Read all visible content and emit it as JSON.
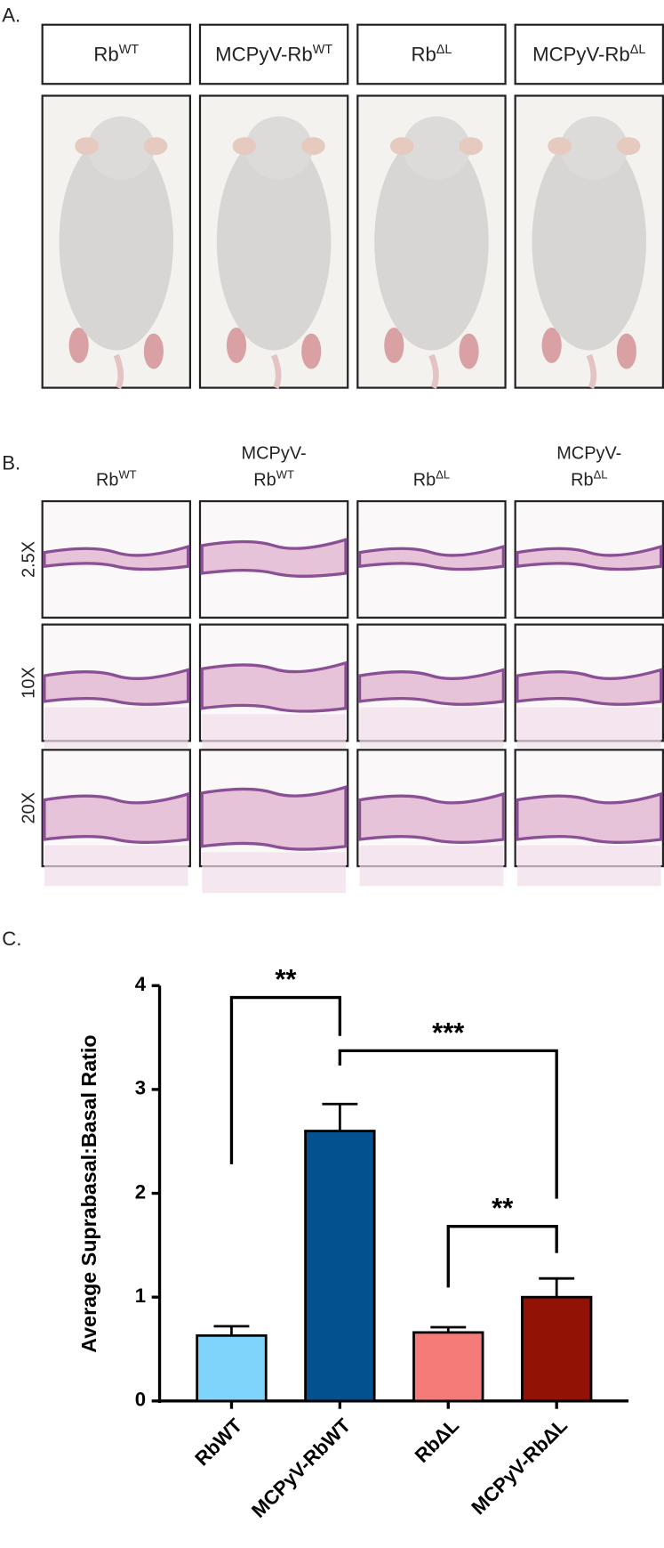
{
  "panel_a": {
    "label": "A.",
    "columns": [
      {
        "base": "Rb",
        "sup": "WT"
      },
      {
        "prefix": "MCPyV-",
        "base": "Rb",
        "sup": "WT"
      },
      {
        "base": "Rb",
        "sup": "ΔL"
      },
      {
        "prefix": "MCPyV-",
        "base": "Rb",
        "sup": "ΔL"
      }
    ]
  },
  "panel_b": {
    "label": "B.",
    "columns": [
      {
        "base": "Rb",
        "sup": "WT"
      },
      {
        "prefix": "MCPyV-",
        "base": "Rb",
        "sup": "WT"
      },
      {
        "base": "Rb",
        "sup": "ΔL"
      },
      {
        "prefix": "MCPyV-",
        "base": "Rb",
        "sup": "ΔL"
      }
    ],
    "rows": [
      "2.5X",
      "10X",
      "20X"
    ]
  },
  "panel_c": {
    "label": "C."
  },
  "chart_data": {
    "type": "bar",
    "ylabel": "Average Suprabasal:Basal Ratio",
    "categories": [
      "RbWT",
      "MCPyV-RbWT",
      "RbΔL",
      "MCPyV-RbΔL"
    ],
    "values": [
      0.63,
      2.6,
      0.66,
      1.0
    ],
    "errors": [
      0.09,
      0.26,
      0.05,
      0.18
    ],
    "colors": [
      "#7fd4fc",
      "#03518f",
      "#f57b78",
      "#921305"
    ],
    "ylim": [
      0,
      4
    ],
    "yticks": [
      0,
      1,
      2,
      3,
      4
    ],
    "annotations": [
      {
        "text": "**",
        "from": "RbWT",
        "to": "MCPyV-RbWT"
      },
      {
        "text": "***",
        "from": "MCPyV-RbWT",
        "to": "MCPyV-RbΔL"
      },
      {
        "text": "**",
        "from": "RbΔL",
        "to": "MCPyV-RbΔL"
      }
    ]
  }
}
